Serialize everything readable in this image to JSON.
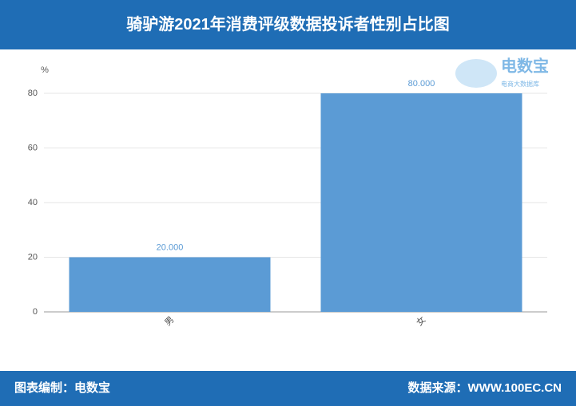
{
  "chart_data": {
    "type": "bar",
    "title": "骑驴游2021年消费评级数据投诉者性别占比图",
    "y_unit": "%",
    "categories": [
      "男",
      "女"
    ],
    "values": [
      20,
      80
    ],
    "value_labels": [
      "20.000",
      "80.000"
    ],
    "color": "#5b9bd5",
    "ylim": [
      0,
      80
    ],
    "yticks": [
      0,
      20,
      40,
      60,
      80
    ],
    "grid": true
  },
  "logo": {
    "name": "电数宝",
    "subtitle": "电商大数据库"
  },
  "footer": {
    "credit": "图表编制：电数宝",
    "source": "数据来源：WWW.100EC.CN"
  }
}
